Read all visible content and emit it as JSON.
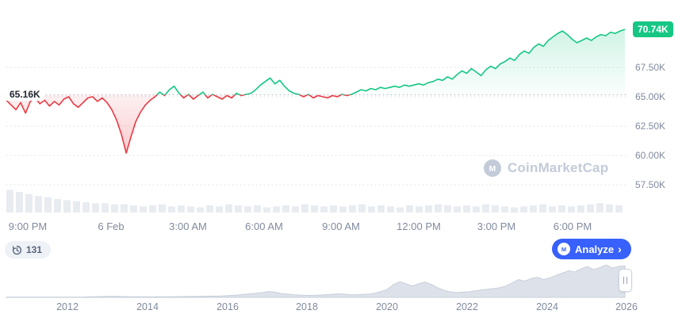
{
  "colors": {
    "green": "#16c784",
    "red": "#ea3943",
    "blue": "#3861fb",
    "axis_text": "#808a9d",
    "baseline_line": "#b3bac6",
    "grid": "#dbe0e8",
    "volume_bar": "#e8ecf1",
    "minimap_fill": "#dde2ea",
    "minimap_stroke": "#c8cfda",
    "watermark": "#c3cbd9",
    "pill_bg": "#eef1f5",
    "pill_text": "#58667e"
  },
  "watermark": {
    "text": "CoinMarketCap"
  },
  "controls": {
    "history_count": "131",
    "analyze_label": "Analyze",
    "analyze_chevron": "›"
  },
  "chart_data": [
    {
      "type": "line",
      "name": "price-chart-intraday",
      "current_price_label": "70.74K",
      "current_price_value": 70.74,
      "baseline_label": "65.16K",
      "baseline_value": 65.16,
      "y_ticks": [
        "67.50K",
        "65.00K",
        "62.50K",
        "60.00K",
        "57.50K"
      ],
      "y_tick_values": [
        67.5,
        65.0,
        62.5,
        60.0,
        57.5
      ],
      "x_ticks": [
        "9:00 PM",
        "6 Feb",
        "3:00 AM",
        "6:00 AM",
        "9:00 AM",
        "12:00 PM",
        "3:00 PM",
        "6:00 PM"
      ],
      "unit": "K",
      "ylim": [
        57.0,
        71.5
      ],
      "grid": true,
      "values_k": [
        64.7,
        64.3,
        63.9,
        64.5,
        63.6,
        64.6,
        64.9,
        64.4,
        64.7,
        64.2,
        64.6,
        64.3,
        64.8,
        65.0,
        64.4,
        64.1,
        64.5,
        64.9,
        65.0,
        64.6,
        64.9,
        64.5,
        63.9,
        63.0,
        61.8,
        60.2,
        61.6,
        62.9,
        63.7,
        64.3,
        64.7,
        65.0,
        65.4,
        65.1,
        65.6,
        65.9,
        65.3,
        64.9,
        65.2,
        64.8,
        65.1,
        65.4,
        64.9,
        65.2,
        65.0,
        64.8,
        65.1,
        64.9,
        65.3,
        65.1,
        65.2,
        65.3,
        65.6,
        66.0,
        66.3,
        66.6,
        66.1,
        66.4,
        65.9,
        65.5,
        65.3,
        65.2,
        65.0,
        65.2,
        64.9,
        65.1,
        65.0,
        64.9,
        65.1,
        65.0,
        65.2,
        65.1,
        65.2,
        65.4,
        65.6,
        65.5,
        65.7,
        65.6,
        65.8,
        65.7,
        65.8,
        65.9,
        65.8,
        66.0,
        65.9,
        66.0,
        66.1,
        66.0,
        66.2,
        66.3,
        66.5,
        66.4,
        66.7,
        66.5,
        66.9,
        67.2,
        67.0,
        67.4,
        67.1,
        66.8,
        67.3,
        67.6,
        67.4,
        67.8,
        68.0,
        68.3,
        68.1,
        68.6,
        68.9,
        68.7,
        69.2,
        69.5,
        69.3,
        69.8,
        70.1,
        70.4,
        70.6,
        70.3,
        69.9,
        69.6,
        69.8,
        70.0,
        69.8,
        70.1,
        70.3,
        70.2,
        70.5,
        70.4,
        70.6,
        70.74
      ],
      "volume_rel": [
        22,
        20,
        18,
        16,
        15,
        13,
        12,
        11,
        10,
        9,
        9,
        8,
        8,
        7,
        6,
        7,
        8,
        6,
        7,
        6,
        5,
        7,
        6,
        8,
        7,
        6,
        7,
        5,
        6,
        7,
        6,
        8,
        7,
        6,
        7,
        6,
        7,
        8,
        6,
        7,
        6,
        5,
        7,
        6,
        7,
        8,
        7,
        6,
        7,
        6,
        8,
        7,
        6,
        5,
        6,
        7,
        8,
        6,
        7,
        6,
        7,
        8,
        9,
        8,
        7
      ]
    },
    {
      "type": "area",
      "name": "history-minimap",
      "x_ticks": [
        "2012",
        "2014",
        "2016",
        "2018",
        "2020",
        "2022",
        "2024",
        "2026"
      ],
      "values_rel": [
        1,
        1,
        1,
        1,
        1,
        1,
        1,
        1,
        1,
        1,
        1,
        1,
        1,
        1.5,
        2,
        2.5,
        3,
        3.5,
        3,
        2.5,
        2,
        1.8,
        1.6,
        1.5,
        1.6,
        1.8,
        2,
        2.2,
        2.5,
        2.8,
        3,
        3.2,
        3.5,
        3.8,
        4,
        5,
        6,
        7,
        9,
        11,
        13,
        15,
        18,
        16,
        12,
        10,
        8,
        7,
        6,
        6,
        7,
        8,
        9,
        11,
        10,
        8,
        8,
        9,
        10,
        13,
        18,
        25,
        40,
        48,
        42,
        35,
        42,
        47,
        40,
        30,
        22,
        17,
        15,
        16,
        17,
        20,
        23,
        25,
        27,
        30,
        35,
        45,
        55,
        50,
        58,
        62,
        55,
        60,
        68,
        75,
        82,
        78,
        88,
        95,
        85,
        92,
        100,
        90,
        95,
        97
      ]
    }
  ]
}
